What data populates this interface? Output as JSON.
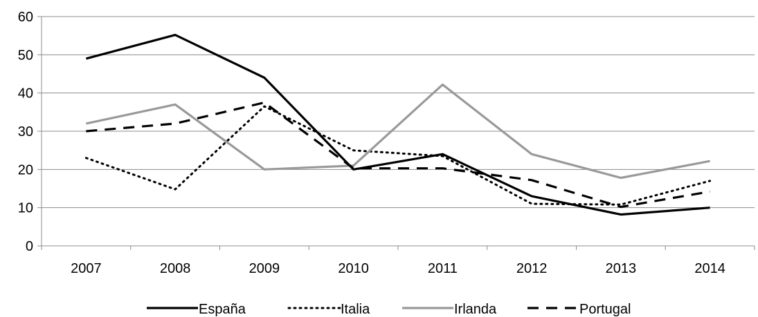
{
  "chart_data": {
    "type": "line",
    "title": "",
    "xlabel": "",
    "ylabel": "",
    "x": [
      "2007",
      "2008",
      "2009",
      "2010",
      "2011",
      "2012",
      "2013",
      "2014"
    ],
    "ylim": [
      0,
      60
    ],
    "yticks": [
      0,
      10,
      20,
      30,
      40,
      50,
      60
    ],
    "grid": true,
    "legend_position": "bottom",
    "series": [
      {
        "name": "España",
        "color": "#000000",
        "style": "solid",
        "values": [
          49,
          55.2,
          44,
          20,
          24,
          13,
          8.2,
          10
        ]
      },
      {
        "name": "Italia",
        "color": "#000000",
        "style": "dotted",
        "values": [
          23,
          14.8,
          36.5,
          25,
          23.5,
          11,
          10.8,
          17
        ]
      },
      {
        "name": "Irlanda",
        "color": "#999999",
        "style": "solid",
        "values": [
          32,
          37,
          20,
          21,
          42.2,
          24,
          17.8,
          22.2
        ]
      },
      {
        "name": "Portugal",
        "color": "#000000",
        "style": "dashed",
        "values": [
          30,
          32,
          37.5,
          20.3,
          20.3,
          17.2,
          10.2,
          14.2
        ]
      }
    ]
  }
}
